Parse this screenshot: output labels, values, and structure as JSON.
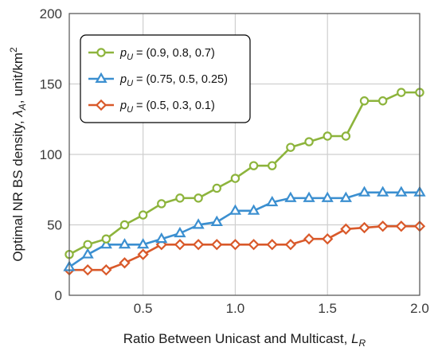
{
  "chart_data": {
    "type": "line",
    "title": "",
    "xlabel": {
      "prefix": "Ratio Between Unicast and Multicast, ",
      "symbol": "L",
      "subscript": "R"
    },
    "ylabel": {
      "prefix": "Optimal NR BS density, ",
      "symbol": "λ",
      "subscript": "A",
      "suffix": ", unit/km",
      "superscript": "2"
    },
    "xlim": [
      0.1,
      2.0
    ],
    "ylim": [
      0,
      200
    ],
    "xticks": [
      0.5,
      1.0,
      1.5,
      2.0
    ],
    "xtick_labels": [
      "0.5",
      "1.0",
      "1.5",
      "2.0"
    ],
    "yticks": [
      0,
      50,
      100,
      150,
      200
    ],
    "ytick_labels": [
      "0",
      "50",
      "100",
      "150",
      "200"
    ],
    "grid": true,
    "legend_position": "top-left",
    "x": [
      0.1,
      0.2,
      0.3,
      0.4,
      0.5,
      0.6,
      0.7,
      0.8,
      0.9,
      1.0,
      1.1,
      1.2,
      1.3,
      1.4,
      1.5,
      1.6,
      1.7,
      1.8,
      1.9,
      2.0
    ],
    "series": [
      {
        "legend_symbol": "p",
        "legend_subscript": "U",
        "legend_values": " = (0.9, 0.8, 0.7)",
        "color": "#8db43c",
        "marker": "circle",
        "values": [
          29,
          36,
          40,
          50,
          57,
          65,
          69,
          69,
          76,
          83,
          92,
          92,
          105,
          109,
          113,
          113,
          138,
          138,
          144,
          144
        ]
      },
      {
        "legend_symbol": "p",
        "legend_subscript": "U",
        "legend_values": " = (0.75, 0.5, 0.25)",
        "color": "#3b8fd0",
        "marker": "triangle",
        "values": [
          20,
          29,
          36,
          36,
          36,
          40,
          44,
          50,
          52,
          60,
          60,
          66,
          69,
          69,
          69,
          69,
          73,
          73,
          73,
          73
        ]
      },
      {
        "legend_symbol": "p",
        "legend_subscript": "U",
        "legend_values": " = (0.5, 0.3, 0.1)",
        "color": "#d9592a",
        "marker": "diamond",
        "values": [
          18,
          18,
          18,
          23,
          29,
          36,
          36,
          36,
          36,
          36,
          36,
          36,
          36,
          40,
          40,
          47,
          48,
          49,
          49,
          49
        ]
      }
    ]
  }
}
